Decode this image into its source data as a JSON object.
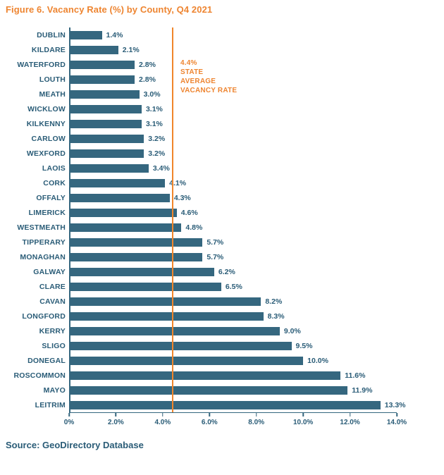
{
  "title": "Figure 6. Vacancy Rate (%) by County, Q4 2021",
  "source": "Source: GeoDirectory Database",
  "colors": {
    "accent_orange": "#EE8531",
    "bar_teal": "#35677F",
    "text_teal": "#2A5C77"
  },
  "annotation": {
    "lines": [
      "4.4%",
      "STATE",
      "AVERAGE",
      "VACANCY RATE"
    ],
    "value": 4.4
  },
  "chart_data": {
    "type": "bar",
    "orientation": "horizontal",
    "title": "Figure 6. Vacancy Rate (%) by County, Q4 2021",
    "categories": [
      "DUBLIN",
      "KILDARE",
      "WATERFORD",
      "LOUTH",
      "MEATH",
      "WICKLOW",
      "KILKENNY",
      "CARLOW",
      "WEXFORD",
      "LAOIS",
      "CORK",
      "OFFALY",
      "LIMERICK",
      "WESTMEATH",
      "TIPPERARY",
      "MONAGHAN",
      "GALWAY",
      "CLARE",
      "CAVAN",
      "LONGFORD",
      "KERRY",
      "SLIGO",
      "DONEGAL",
      "ROSCOMMON",
      "MAYO",
      "LEITRIM"
    ],
    "values": [
      1.4,
      2.1,
      2.8,
      2.8,
      3.0,
      3.1,
      3.1,
      3.2,
      3.2,
      3.4,
      4.1,
      4.3,
      4.6,
      4.8,
      5.7,
      5.7,
      6.2,
      6.5,
      8.2,
      8.3,
      9.0,
      9.5,
      10.0,
      11.6,
      11.9,
      13.3
    ],
    "value_labels": [
      "1.4%",
      "2.1%",
      "2.8%",
      "2.8%",
      "3.0%",
      "3.1%",
      "3.1%",
      "3.2%",
      "3.2%",
      "3.4%",
      "4.1%",
      "4.3%",
      "4.6%",
      "4.8%",
      "5.7%",
      "5.7%",
      "6.2%",
      "6.5%",
      "8.2%",
      "8.3%",
      "9.0%",
      "9.5%",
      "10.0%",
      "11.6%",
      "11.9%",
      "13.3%"
    ],
    "xlabel": "",
    "ylabel": "",
    "xlim": [
      0,
      14
    ],
    "x_tick_values": [
      0,
      2,
      4,
      6,
      8,
      10,
      12,
      14
    ],
    "x_tick_labels": [
      "0%",
      "2.0%",
      "4.0%",
      "6.0%",
      "8.0%",
      "10.0%",
      "12.0%",
      "14.0%"
    ],
    "reference_line": {
      "value": 4.4,
      "label": "4.4% STATE AVERAGE VACANCY RATE",
      "color": "#F0862B"
    },
    "grid": false,
    "legend": false
  }
}
